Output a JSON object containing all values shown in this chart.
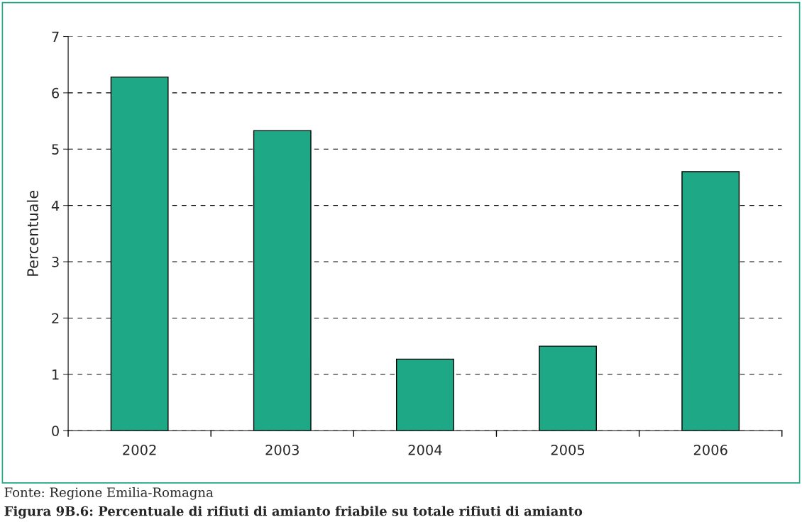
{
  "chart_data": {
    "type": "bar",
    "title": "Figura 9B.6: Percentuale di rifiuti di amianto friabile su totale rifiuti di amianto",
    "ylabel": "Percentuale",
    "categories": [
      "2002",
      "2003",
      "2004",
      "2005",
      "2006"
    ],
    "values": [
      6.28,
      5.33,
      1.27,
      1.5,
      4.6
    ],
    "color": "#1fa886",
    "ylim": [
      0,
      7
    ],
    "yticks": [
      0,
      1,
      2,
      3,
      4,
      5,
      6,
      7
    ],
    "grid": "y",
    "line_style": "dashed",
    "annotations": [
      "Fonte: Regione Emilia-Romagna"
    ]
  }
}
